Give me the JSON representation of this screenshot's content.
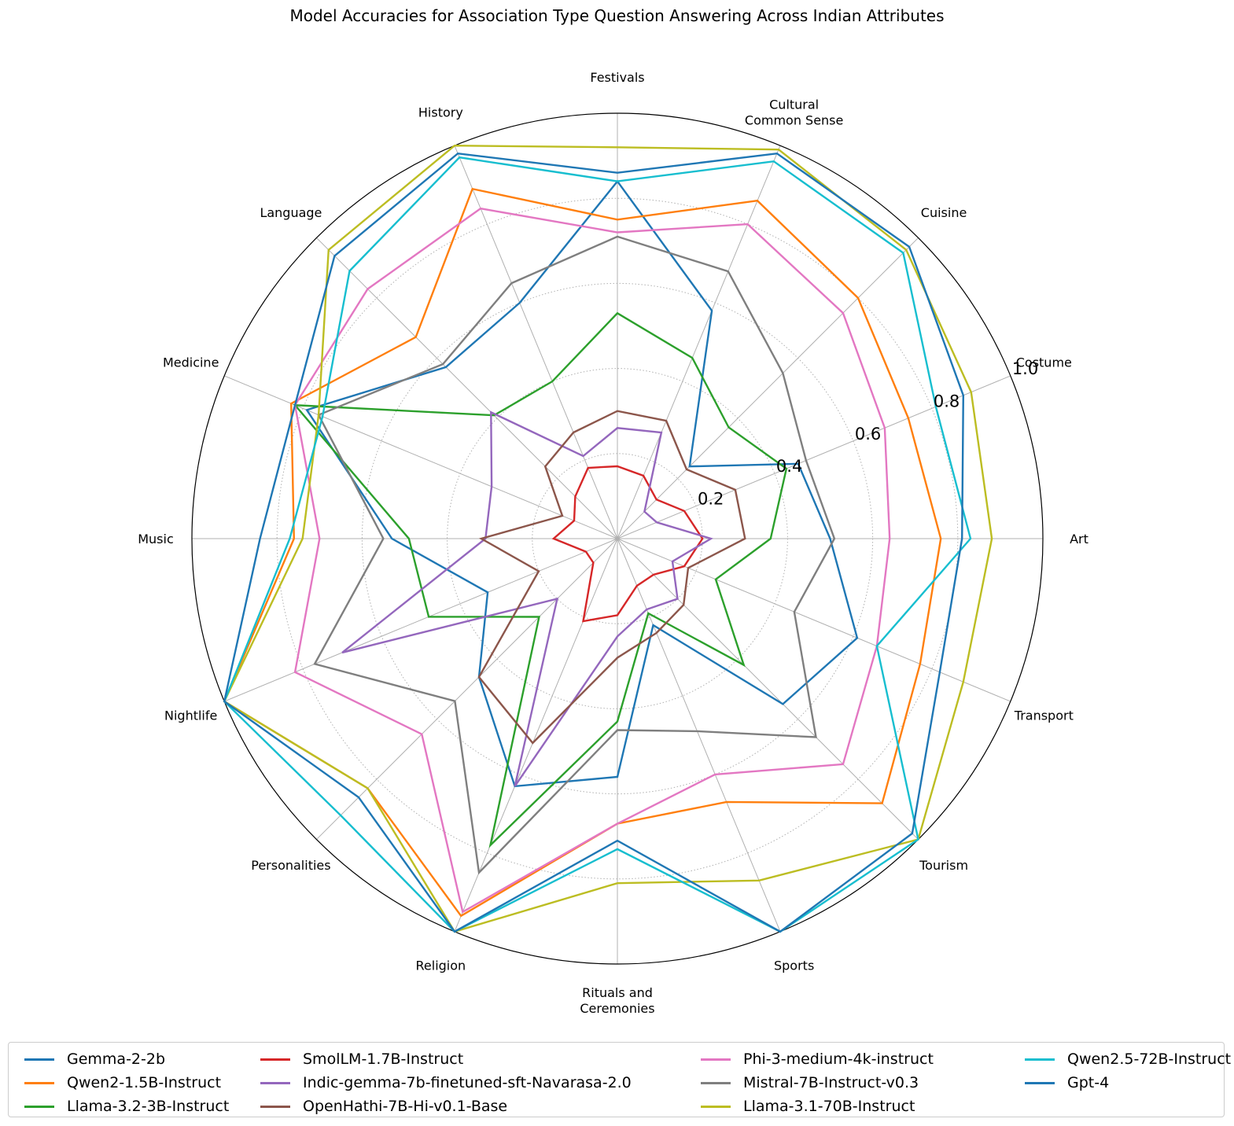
{
  "chart_data": {
    "type": "radar",
    "title": "Model Accuracies for Association Type Question Answering Across Indian Attributes",
    "categories": [
      "Art",
      "Costume",
      "Cuisine",
      "Cultural\nCommon Sense",
      "Festivals",
      "History",
      "Language",
      "Medicine",
      "Music",
      "Nightlife",
      "Personalities",
      "Religion",
      "Rituals and\nCeremonies",
      "Sports",
      "Tourism",
      "Transport"
    ],
    "rlim": [
      0,
      1.0
    ],
    "rticks": [
      0.2,
      0.4,
      0.6,
      0.8,
      1.0
    ],
    "rtick_labels": [
      "0.2",
      "0.4",
      "0.6",
      "0.8",
      "1.0"
    ],
    "grid": true,
    "legend_position": "bottom",
    "series": [
      {
        "name": "Gemma-2-2b",
        "color": "#1f77b4",
        "values": [
          0.5,
          0.46,
          0.24,
          0.58,
          0.84,
          0.6,
          0.57,
          0.79,
          0.53,
          0.33,
          0.46,
          0.63,
          0.56,
          0.22,
          0.55,
          0.61
        ]
      },
      {
        "name": "Qwen2-1.5B-Instruct",
        "color": "#ff7f0e",
        "values": [
          0.76,
          0.74,
          0.8,
          0.86,
          0.75,
          0.89,
          0.67,
          0.83,
          0.76,
          1.0,
          0.83,
          0.96,
          0.67,
          0.67,
          0.88,
          0.77
        ]
      },
      {
        "name": "Llama-3.2-3B-Instruct",
        "color": "#2ca02c",
        "values": [
          0.36,
          0.43,
          0.37,
          0.46,
          0.53,
          0.4,
          0.41,
          0.82,
          0.49,
          0.48,
          0.26,
          0.78,
          0.43,
          0.19,
          0.42,
          0.25
        ]
      },
      {
        "name": "SmolLM-1.7B-Instruct",
        "color": "#d62728",
        "values": [
          0.2,
          0.17,
          0.13,
          0.16,
          0.17,
          0.18,
          0.14,
          0.11,
          0.15,
          0.08,
          0.08,
          0.21,
          0.18,
          0.12,
          0.12,
          0.17
        ]
      },
      {
        "name": "Indic-gemma-7b-finetuned-sft-Navarasa-2.0",
        "color": "#9467bd",
        "values": [
          0.22,
          0.1,
          0.09,
          0.27,
          0.26,
          0.21,
          0.42,
          0.32,
          0.31,
          0.7,
          0.2,
          0.63,
          0.23,
          0.18,
          0.2,
          0.14
        ]
      },
      {
        "name": "OpenHathi-7B-Hi-v0.1-Base",
        "color": "#8c564b",
        "values": [
          0.3,
          0.3,
          0.23,
          0.3,
          0.3,
          0.27,
          0.24,
          0.14,
          0.32,
          0.2,
          0.46,
          0.52,
          0.28,
          0.24,
          0.22,
          0.18
        ]
      },
      {
        "name": "Phi-3-medium-4k-instruct",
        "color": "#e377c2",
        "values": [
          0.64,
          0.68,
          0.75,
          0.8,
          0.72,
          0.84,
          0.83,
          0.82,
          0.7,
          0.82,
          0.65,
          0.95,
          0.67,
          0.6,
          0.75,
          0.66
        ]
      },
      {
        "name": "Mistral-7B-Instruct-v0.3",
        "color": "#7f7f7f",
        "values": [
          0.51,
          0.48,
          0.55,
          0.68,
          0.71,
          0.65,
          0.58,
          0.76,
          0.55,
          0.77,
          0.54,
          0.85,
          0.45,
          0.49,
          0.66,
          0.45
        ]
      },
      {
        "name": "Llama-3.1-70B-Instruct",
        "color": "#bcbd22",
        "values": [
          0.88,
          0.9,
          0.96,
          0.99,
          0.92,
          1.0,
          0.96,
          0.76,
          0.74,
          1.0,
          0.83,
          1.0,
          0.81,
          0.87,
          1.0,
          0.88
        ]
      },
      {
        "name": "Qwen2.5-72B-Instruct",
        "color": "#17becf",
        "values": [
          0.83,
          0.81,
          0.95,
          0.96,
          0.84,
          0.97,
          0.89,
          0.75,
          0.77,
          1.0,
          0.92,
          1.0,
          0.73,
          1.0,
          1.0,
          0.66
        ]
      },
      {
        "name": "Gpt-4",
        "color": "#1f77b4",
        "values": [
          0.81,
          0.88,
          0.97,
          0.98,
          0.86,
          0.98,
          0.94,
          0.82,
          0.84,
          1.0,
          0.86,
          1.0,
          0.71,
          1.0,
          0.98,
          0.82
        ]
      }
    ]
  }
}
